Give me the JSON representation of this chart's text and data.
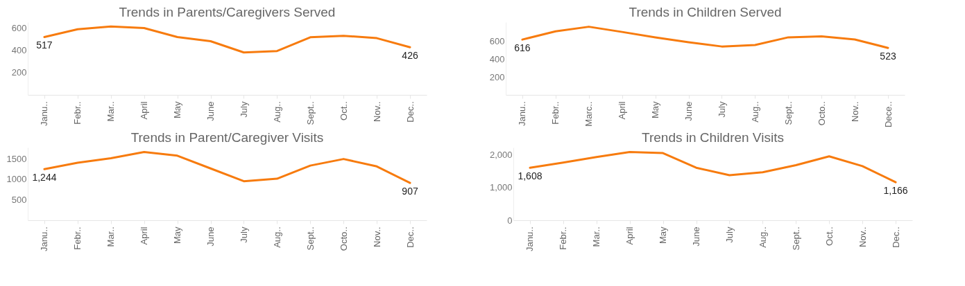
{
  "chart_data": [
    {
      "type": "line",
      "title": "Trends in Parents/Caregivers Served",
      "categories": [
        "Janu..",
        "Febr..",
        "Mar..",
        "April",
        "May",
        "June",
        "July",
        "Aug..",
        "Sept..",
        "Oct..",
        "Nov..",
        "Dec.."
      ],
      "series": [
        {
          "color": "#f77b0e",
          "values": [
            517,
            587,
            611,
            597,
            517,
            480,
            379,
            392,
            515,
            528,
            507,
            426
          ],
          "value_labels": [
            "517",
            null,
            null,
            null,
            null,
            null,
            null,
            null,
            null,
            null,
            null,
            "426"
          ]
        }
      ],
      "ylim": [
        0,
        650
      ],
      "yticks": [
        200,
        400,
        600
      ]
    },
    {
      "type": "line",
      "title": "Trends in Children Served",
      "categories": [
        "Janu..",
        "Febr..",
        "Marc..",
        "April",
        "May",
        "June",
        "July",
        "Aug..",
        "Sept..",
        "Octo..",
        "Nov..",
        "Dece.."
      ],
      "series": [
        {
          "color": "#f77b0e",
          "values": [
            616,
            708,
            759,
            701,
            640,
            586,
            539,
            556,
            641,
            651,
            617,
            523
          ],
          "value_labels": [
            "616",
            null,
            null,
            null,
            null,
            null,
            null,
            null,
            null,
            null,
            null,
            "523"
          ]
        }
      ],
      "ylim": [
        0,
        810
      ],
      "yticks": [
        200,
        400,
        600
      ]
    },
    {
      "type": "line",
      "title": "Trends in Parent/Caregiver Visits",
      "categories": [
        "Janu..",
        "Febr..",
        "Mar..",
        "April",
        "May",
        "June",
        "July",
        "Aug..",
        "Sept..",
        "Octo..",
        "Nov..",
        "Dec.."
      ],
      "series": [
        {
          "color": "#f77b0e",
          "values": [
            1244,
            1400,
            1510,
            1660,
            1570,
            1260,
            950,
            1010,
            1330,
            1490,
            1310,
            907
          ],
          "value_labels": [
            "1,244",
            null,
            null,
            null,
            null,
            null,
            null,
            null,
            null,
            null,
            null,
            "907"
          ]
        }
      ],
      "ylim": [
        0,
        1770
      ],
      "yticks": [
        500,
        1000,
        1500
      ]
    },
    {
      "type": "line",
      "title": "Trends in Children Visits",
      "categories": [
        "Janu..",
        "Febr..",
        "Mar..",
        "April",
        "May",
        "June",
        "July",
        "Aug..",
        "Sept..",
        "Oct..",
        "Nov..",
        "Dec.."
      ],
      "series": [
        {
          "color": "#f77b0e",
          "values": [
            1608,
            1770,
            1940,
            2090,
            2060,
            1610,
            1380,
            1470,
            1690,
            1960,
            1660,
            1166
          ],
          "value_labels": [
            "1,608",
            null,
            null,
            null,
            null,
            null,
            null,
            null,
            null,
            null,
            null,
            "1,166"
          ]
        }
      ],
      "ylim": [
        0,
        2230
      ],
      "yticks": [
        0,
        {
          "value": 1000,
          "label": "1,000"
        },
        {
          "value": 2000,
          "label": "2,000"
        }
      ]
    }
  ]
}
